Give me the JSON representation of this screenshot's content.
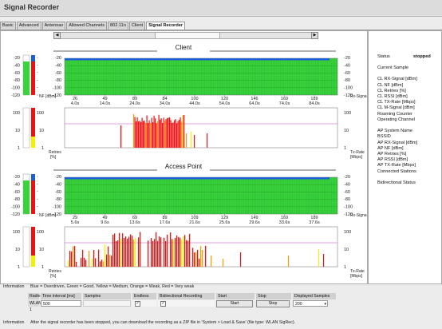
{
  "window": {
    "title": "Signal Recorder"
  },
  "tabs": [
    "Basic",
    "Advanced",
    "Antennas",
    "Allowed Channels",
    "802.11n",
    "Client",
    "Signal Recorder"
  ],
  "active_tab": "Signal Recorder",
  "recorder": {
    "sections": [
      {
        "title": "Client",
        "signal_chart": {
          "left_label": "NF [dBm]",
          "right_label": "Rx-Signal [dBm]",
          "y_ticks": [
            "-20",
            "-40",
            "-60",
            "-80",
            "-100",
            "-120"
          ],
          "right_ticks": [
            "-20",
            "-40",
            "-60",
            "-80",
            "-100",
            "-120"
          ],
          "sample_ticks": [
            "26",
            "49",
            "89",
            "84",
            "100",
            "120",
            "146",
            "169",
            "189"
          ],
          "time_ticks": [
            "4.0s",
            "14.0s",
            "24.0s",
            "34.0s",
            "44.0s",
            "54.0s",
            "64.0s",
            "74.0s",
            "84.0s"
          ]
        },
        "rate_chart": {
          "left_label": "Retries [%]",
          "right_label": "Tx-Rate [Mbps]",
          "y_ticks": [
            "100",
            "10",
            "1"
          ],
          "right_ticks": [
            "100",
            "10",
            "1"
          ]
        }
      },
      {
        "title": "Access Point",
        "signal_chart": {
          "left_label": "NF [dBm]",
          "right_label": "Rx-Signal [dBm]",
          "y_ticks": [
            "-20",
            "-40",
            "-60",
            "-80",
            "-100",
            "-120"
          ],
          "right_ticks": [
            "-20",
            "-40",
            "-60",
            "-80",
            "-100",
            "-120"
          ],
          "sample_ticks": [
            "29",
            "49",
            "69",
            "89",
            "109",
            "129",
            "149",
            "169",
            "189"
          ],
          "time_ticks": [
            "5.6s",
            "9.6s",
            "13.6s",
            "17.6s",
            "21.6s",
            "25.6s",
            "29.6s",
            "33.6s",
            "37.6s"
          ]
        },
        "rate_chart": {
          "left_label": "Retries [%]",
          "right_label": "Tx-Rate [Mbps]",
          "y_ticks": [
            "100",
            "10",
            "1"
          ],
          "right_ticks": [
            "100",
            "10",
            "1"
          ]
        }
      }
    ]
  },
  "status_panel": {
    "status_label": "Status",
    "status_value": "stopped",
    "items": [
      "Current Sample",
      "",
      "CL RX-Signal [dBm]",
      "CL NF [dBm]",
      "CL Retries [%]",
      "CL RSSI [dBm]",
      "CL TX-Rate [Mbps]",
      "CL M-Signal [dBm]",
      "Roaming Counter",
      "Operating Channel",
      "",
      "AP System Name",
      "BSSID",
      "AP RX-Signal [dBm]",
      "AP NF [dBm]",
      "AP Retries [%]",
      "AP RSSI [dBm]",
      "AP TX-Rate [Mbps]",
      "Connected Stations",
      "",
      "Bidirectional Status"
    ]
  },
  "legend": {
    "label": "Information",
    "text": "Blue = Overdriven, Green = Good, Yellow = Medium, Orange = Weak, Red = Very weak"
  },
  "controls": {
    "headers": [
      "Radio",
      "Time interval [ms]",
      "Samples",
      "Endless",
      "Bidirectional Recording",
      "Start",
      "Stop",
      "Displayed Samples"
    ],
    "radio": "WLAN 1",
    "time_interval": "500",
    "samples": "",
    "endless_checked": true,
    "bidirectional_checked": true,
    "start_label": "Start",
    "stop_label": "Stop",
    "displayed_samples": "200",
    "dropdown_icon": "chevron-down-icon"
  },
  "footer": {
    "label": "Information",
    "text": "After the signal recorder has been stopped, you can download the recording as a ZIP file in 'System > Load & Save' (file type: WLAN SigRec)."
  },
  "colors": {
    "overdriven": "#1f5fd6",
    "good": "#39d43c",
    "medium": "#f2f200",
    "weak": "#ff9900",
    "very_weak": "#ee1111",
    "rate_line": "#cc44cc",
    "panel_bg": "#ffffff"
  }
}
